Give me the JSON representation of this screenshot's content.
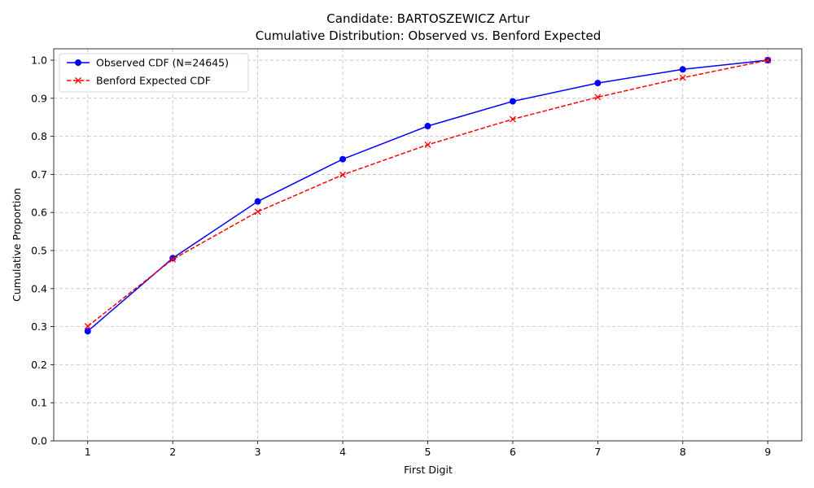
{
  "chart_data": {
    "type": "line",
    "title": [
      "Candidate: BARTOSZEWICZ Artur",
      "Cumulative Distribution: Observed vs. Benford Expected"
    ],
    "xlabel": "First Digit",
    "ylabel": "Cumulative Proportion",
    "x": [
      1,
      2,
      3,
      4,
      5,
      6,
      7,
      8,
      9
    ],
    "x_tick_labels": [
      "1",
      "2",
      "3",
      "4",
      "5",
      "6",
      "7",
      "8",
      "9"
    ],
    "y_tick_values": [
      0.0,
      0.1,
      0.2,
      0.3,
      0.4,
      0.5,
      0.6,
      0.7,
      0.8,
      0.9,
      1.0
    ],
    "y_tick_labels": [
      "0.0",
      "0.1",
      "0.2",
      "0.3",
      "0.4",
      "0.5",
      "0.6",
      "0.7",
      "0.8",
      "0.9",
      "1.0"
    ],
    "xlim": [
      0.6,
      9.4
    ],
    "ylim": [
      0.0,
      1.03
    ],
    "grid": true,
    "legend_position": "top-left",
    "series": [
      {
        "name": "Observed CDF (N=24645)",
        "values": [
          0.288,
          0.48,
          0.629,
          0.74,
          0.827,
          0.892,
          0.94,
          0.976,
          1.0
        ],
        "color": "#0000ff",
        "line_style": "solid",
        "marker": "circle"
      },
      {
        "name": "Benford Expected CDF",
        "values": [
          0.301,
          0.477,
          0.602,
          0.699,
          0.778,
          0.845,
          0.903,
          0.954,
          1.0
        ],
        "color": "#ff0000",
        "line_style": "dashed",
        "marker": "x"
      }
    ]
  }
}
